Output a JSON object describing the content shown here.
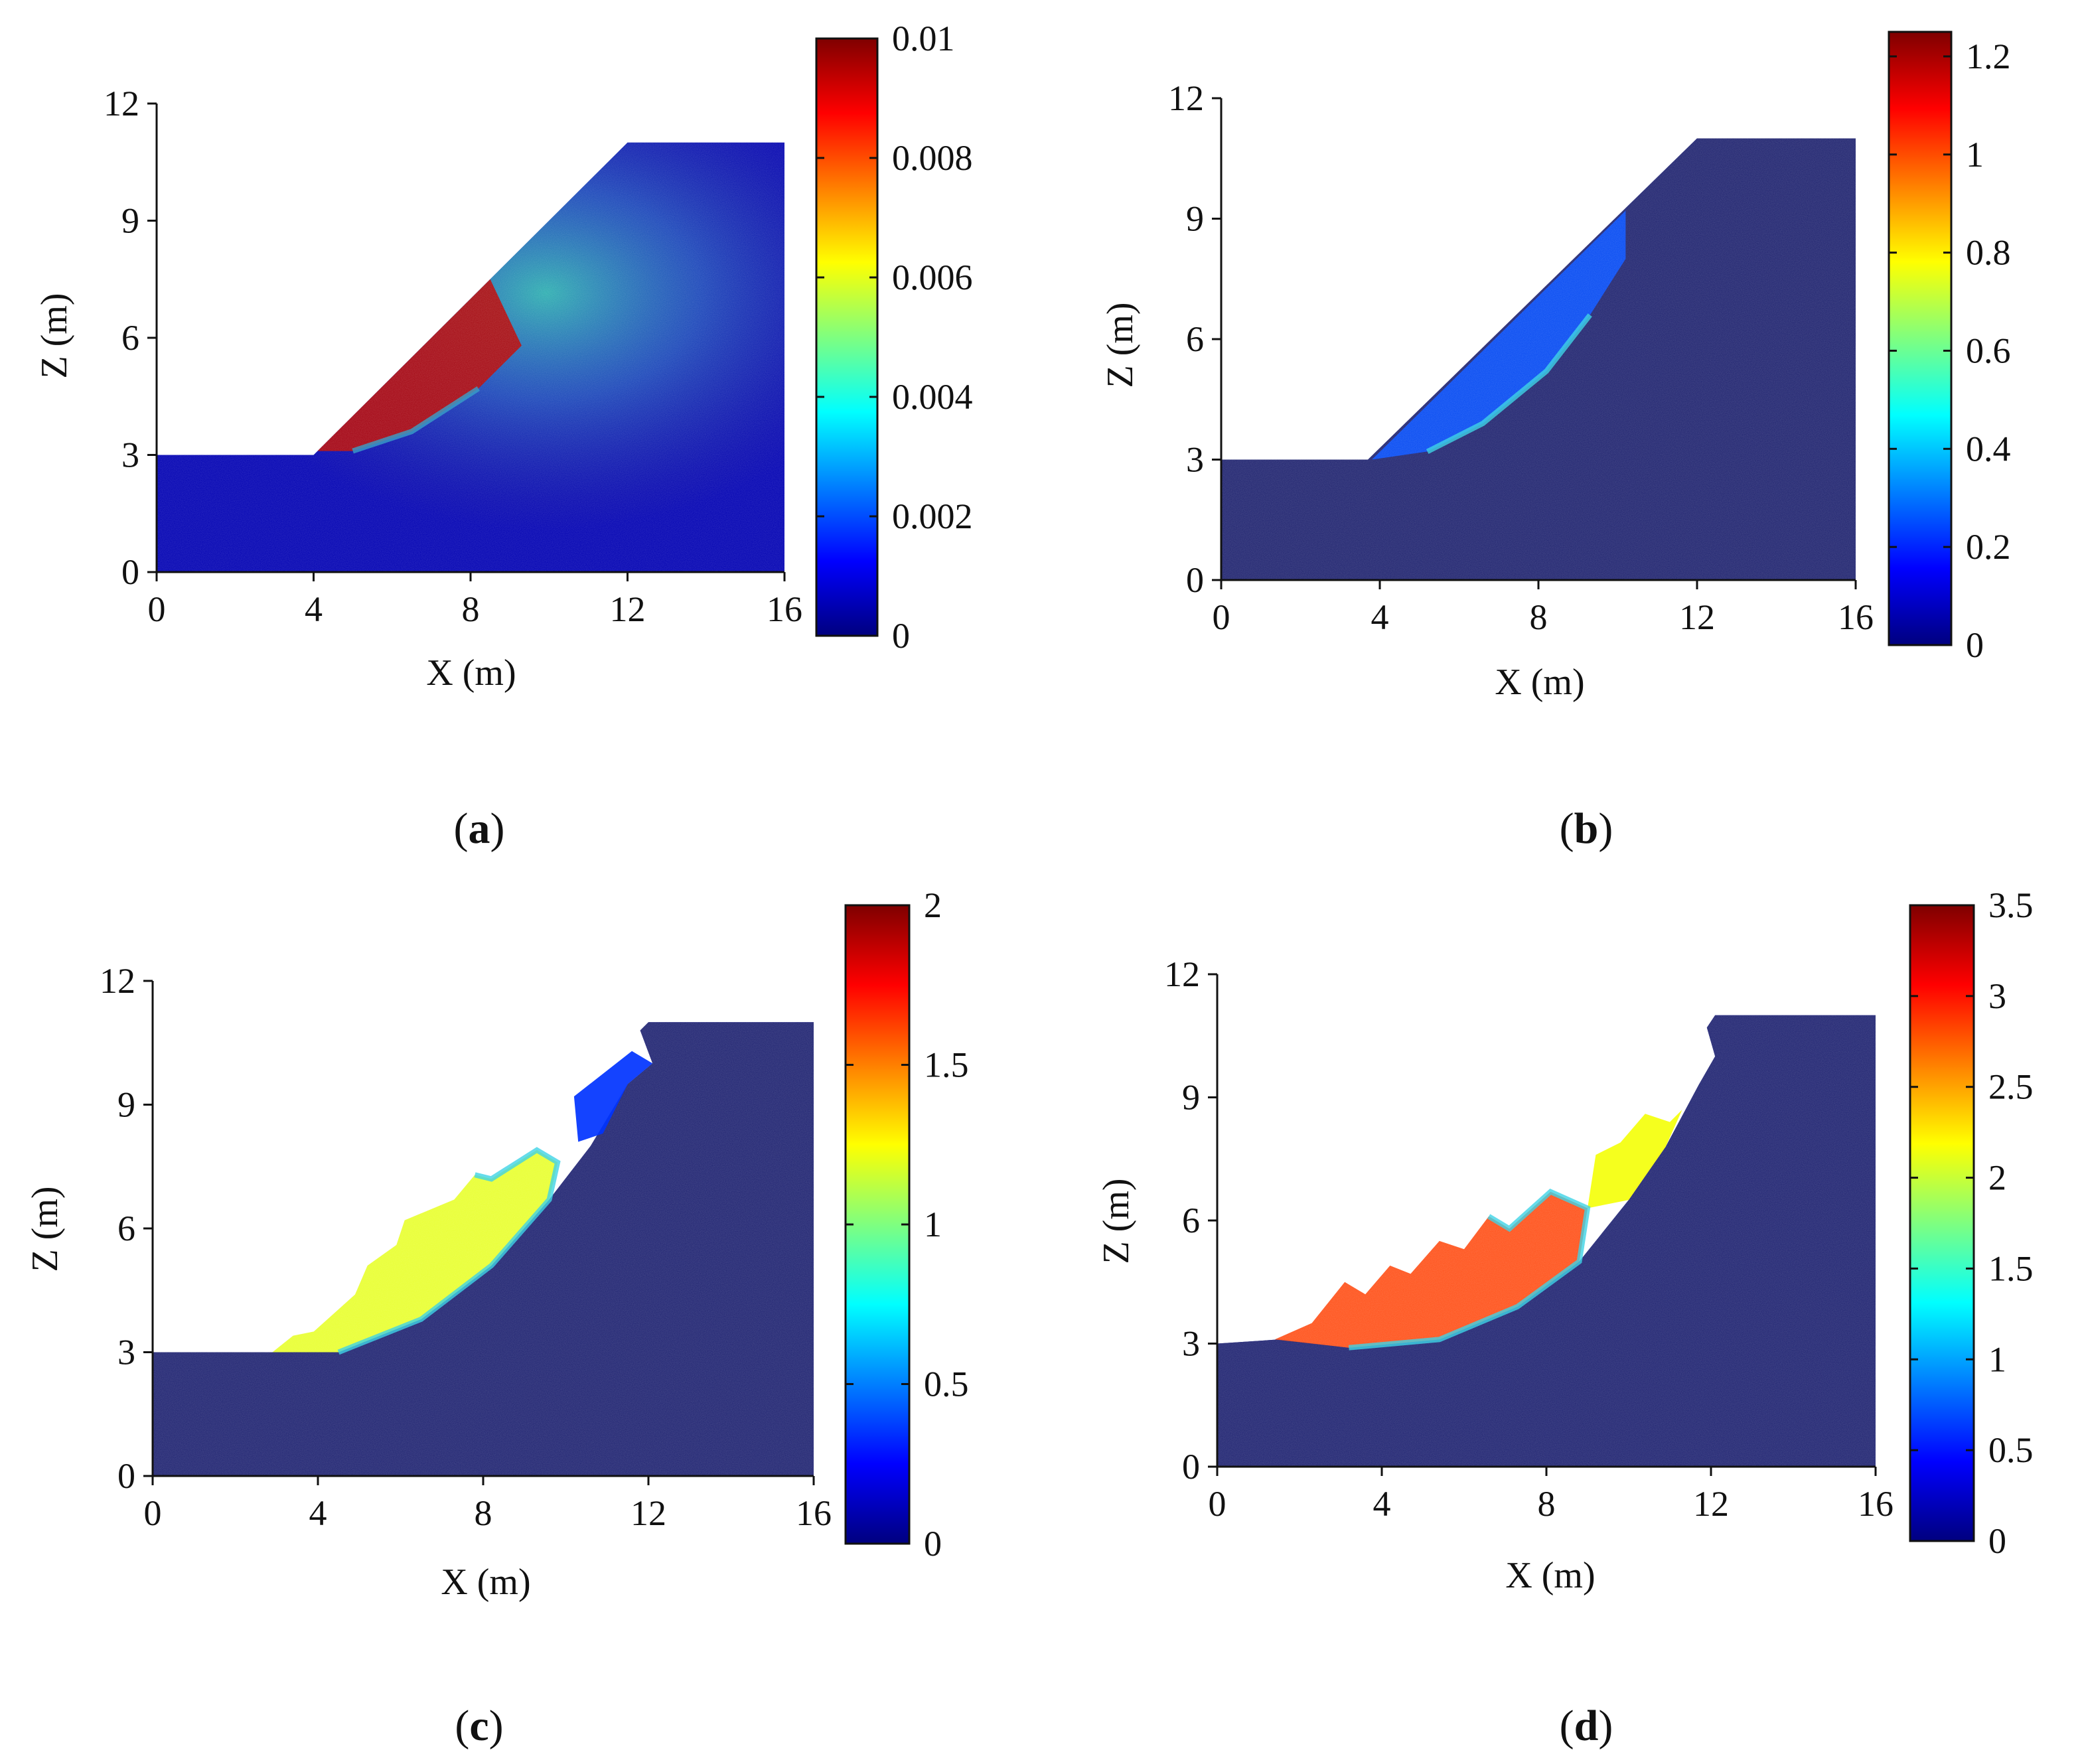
{
  "figure": {
    "panels": [
      {
        "caption_open": "(",
        "caption_letter": "a",
        "caption_close": ")"
      },
      {
        "caption_open": "(",
        "caption_letter": "b",
        "caption_close": ")"
      },
      {
        "caption_open": "(",
        "caption_letter": "c",
        "caption_close": ")"
      },
      {
        "caption_open": "(",
        "caption_letter": "d",
        "caption_close": ")"
      }
    ]
  },
  "colors": {
    "soil_dark": "#24296a",
    "axis": "#111111",
    "colormap": [
      "#00007f",
      "#0000ff",
      "#007fff",
      "#00ffff",
      "#7fff7f",
      "#ffff00",
      "#ff7f00",
      "#ff0000",
      "#7f0000"
    ]
  },
  "chart_data": [
    {
      "type": "heatmap",
      "panel": "a",
      "xlabel": "X (m)",
      "ylabel": "Z (m)",
      "xlim": [
        0,
        16
      ],
      "ylim": [
        0,
        12
      ],
      "xticks": [
        0,
        4,
        8,
        12,
        16
      ],
      "yticks": [
        0,
        3,
        6,
        9,
        12
      ],
      "xticklabels": [
        "0",
        "4",
        "8",
        "12",
        "16"
      ],
      "yticklabels": [
        "0",
        "3",
        "6",
        "9",
        "12"
      ],
      "colorbar": {
        "min": 0,
        "max": 0.01,
        "ticks": [
          0,
          0.002,
          0.004,
          0.006,
          0.008,
          0.01
        ],
        "ticklabels": [
          "0",
          "0.002",
          "0.004",
          "0.006",
          "0.008",
          "0.01"
        ]
      },
      "domain_outline": [
        [
          0,
          0
        ],
        [
          16,
          0
        ],
        [
          16,
          11
        ],
        [
          12,
          11
        ],
        [
          4,
          3
        ],
        [
          0,
          3
        ]
      ],
      "sliding_mass": [
        [
          4.1,
          3.1
        ],
        [
          8.5,
          7.5
        ],
        [
          9.3,
          5.8
        ],
        [
          8.2,
          4.7
        ],
        [
          6.5,
          3.6
        ],
        [
          5.0,
          3.1
        ]
      ],
      "sliding_value": 0.0095,
      "background_value": 0.0005
    },
    {
      "type": "heatmap",
      "panel": "b",
      "xlabel": "X (m)",
      "ylabel": "Z (m)",
      "xlim": [
        0,
        16
      ],
      "ylim": [
        0,
        12
      ],
      "xticks": [
        0,
        4,
        8,
        12,
        16
      ],
      "yticks": [
        0,
        3,
        6,
        9,
        12
      ],
      "xticklabels": [
        "0",
        "4",
        "8",
        "12",
        "16"
      ],
      "yticklabels": [
        "0",
        "3",
        "6",
        "9",
        "12"
      ],
      "colorbar": {
        "min": 0,
        "max": 1.25,
        "ticks": [
          0,
          0.2,
          0.4,
          0.6,
          0.8,
          1,
          1.2
        ],
        "ticklabels": [
          "0",
          "0.2",
          "0.4",
          "0.6",
          "0.8",
          "1",
          "1.2"
        ]
      },
      "domain_outline": [
        [
          0,
          0
        ],
        [
          16,
          0
        ],
        [
          16,
          11
        ],
        [
          12,
          11
        ],
        [
          3.7,
          3
        ],
        [
          0,
          3
        ]
      ],
      "sliding_mass": [
        [
          3.8,
          3.0
        ],
        [
          10.2,
          9.2
        ],
        [
          10.2,
          8.0
        ],
        [
          9.3,
          6.6
        ],
        [
          8.2,
          5.2
        ],
        [
          6.6,
          3.9
        ],
        [
          5.2,
          3.2
        ]
      ],
      "sliding_value": 0.25,
      "background_value": 0.02
    },
    {
      "type": "heatmap",
      "panel": "c",
      "xlabel": "X (m)",
      "ylabel": "Z (m)",
      "xlim": [
        0,
        16
      ],
      "ylim": [
        0,
        12
      ],
      "xticks": [
        0,
        4,
        8,
        12,
        16
      ],
      "yticks": [
        0,
        3,
        6,
        9,
        12
      ],
      "xticklabels": [
        "0",
        "4",
        "8",
        "12",
        "16"
      ],
      "yticklabels": [
        "0",
        "3",
        "6",
        "9",
        "12"
      ],
      "colorbar": {
        "min": 0,
        "max": 2,
        "ticks": [
          0,
          0.5,
          1,
          1.5,
          2
        ],
        "ticklabels": [
          "0",
          "0.5",
          "1",
          "1.5",
          "2"
        ]
      },
      "domain_outline": [
        [
          0,
          0
        ],
        [
          16,
          0
        ],
        [
          16,
          11
        ],
        [
          12.0,
          11
        ],
        [
          11.8,
          10.8
        ],
        [
          12.1,
          10.0
        ],
        [
          11.5,
          9.5
        ],
        [
          10.6,
          8.0
        ],
        [
          9.6,
          6.7
        ],
        [
          8.2,
          5.1
        ],
        [
          6.5,
          3.8
        ],
        [
          4.5,
          3.0
        ],
        [
          0,
          3
        ]
      ],
      "sliding_mass": [
        [
          2.9,
          3.0
        ],
        [
          3.4,
          3.4
        ],
        [
          3.9,
          3.5
        ],
        [
          4.9,
          4.4
        ],
        [
          5.2,
          5.1
        ],
        [
          5.9,
          5.6
        ],
        [
          6.1,
          6.2
        ],
        [
          7.3,
          6.7
        ],
        [
          7.8,
          7.3
        ],
        [
          8.2,
          7.2
        ],
        [
          9.3,
          7.9
        ],
        [
          9.8,
          7.6
        ],
        [
          9.6,
          6.7
        ],
        [
          8.2,
          5.1
        ],
        [
          6.5,
          3.8
        ],
        [
          4.5,
          3.0
        ]
      ],
      "sliding_value": 1.2,
      "upper_block": [
        [
          10.3,
          8.1
        ],
        [
          10.2,
          9.2
        ],
        [
          11.6,
          10.3
        ],
        [
          12.1,
          10.0
        ],
        [
          11.5,
          9.5
        ],
        [
          10.9,
          8.3
        ]
      ],
      "upper_block_value": 0.35,
      "background_value": 0.05
    },
    {
      "type": "heatmap",
      "panel": "d",
      "xlabel": "X (m)",
      "ylabel": "Z (m)",
      "xlim": [
        0,
        16
      ],
      "ylim": [
        0,
        12
      ],
      "xticks": [
        0,
        4,
        8,
        12,
        16
      ],
      "yticks": [
        0,
        3,
        6,
        9,
        12
      ],
      "xticklabels": [
        "0",
        "4",
        "8",
        "12",
        "16"
      ],
      "yticklabels": [
        "0",
        "3",
        "6",
        "9",
        "12"
      ],
      "colorbar": {
        "min": 0,
        "max": 3.5,
        "ticks": [
          0,
          0.5,
          1,
          1.5,
          2,
          2.5,
          3,
          3.5
        ],
        "ticklabels": [
          "0",
          "0.5",
          "1",
          "1.5",
          "2",
          "2.5",
          "3",
          "3.5"
        ]
      },
      "domain_outline": [
        [
          0,
          0
        ],
        [
          16,
          0
        ],
        [
          16,
          11
        ],
        [
          12.1,
          11
        ],
        [
          11.9,
          10.7
        ],
        [
          12.1,
          10.0
        ],
        [
          11.7,
          9.3
        ],
        [
          10.9,
          7.8
        ],
        [
          10.0,
          6.5
        ],
        [
          8.8,
          5.0
        ],
        [
          7.3,
          3.9
        ],
        [
          5.4,
          3.1
        ],
        [
          3.2,
          2.9
        ],
        [
          1.5,
          3.1
        ],
        [
          0,
          3
        ]
      ],
      "sliding_mass": [
        [
          1.4,
          3.1
        ],
        [
          2.3,
          3.5
        ],
        [
          3.1,
          4.5
        ],
        [
          3.6,
          4.2
        ],
        [
          4.2,
          4.9
        ],
        [
          4.7,
          4.7
        ],
        [
          5.4,
          5.5
        ],
        [
          6.0,
          5.3
        ],
        [
          6.6,
          6.1
        ],
        [
          7.1,
          5.8
        ],
        [
          8.1,
          6.7
        ],
        [
          9.0,
          6.3
        ],
        [
          8.8,
          5.0
        ],
        [
          7.3,
          3.9
        ],
        [
          5.4,
          3.1
        ],
        [
          3.2,
          2.9
        ]
      ],
      "sliding_value": 2.85,
      "upper_block": [
        [
          9.0,
          6.3
        ],
        [
          9.2,
          7.6
        ],
        [
          9.8,
          7.9
        ],
        [
          10.4,
          8.6
        ],
        [
          11.0,
          8.4
        ],
        [
          11.3,
          8.7
        ],
        [
          10.9,
          7.8
        ],
        [
          10.0,
          6.5
        ]
      ],
      "upper_block_value": 2.15,
      "background_value": 0.1
    }
  ]
}
